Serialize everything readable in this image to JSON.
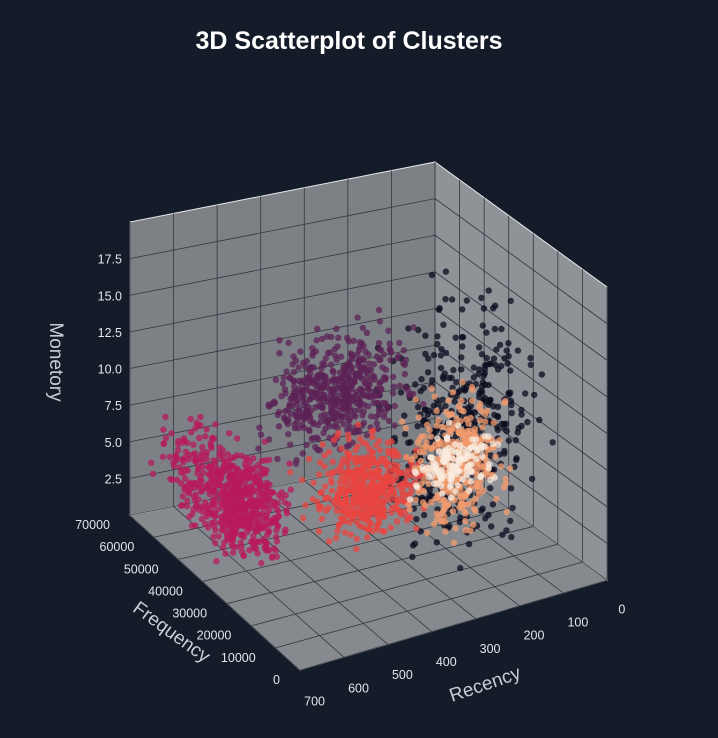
{
  "chart_data": {
    "type": "scatter",
    "title": "3D Scatterplot of Clusters",
    "xlabel": "Recency",
    "ylabel": "Frequency",
    "zlabel": "Monetory",
    "x_ticks": [
      "0",
      "100",
      "200",
      "300",
      "400",
      "500",
      "600",
      "700"
    ],
    "y_ticks": [
      "0",
      "10000",
      "20000",
      "30000",
      "40000",
      "50000",
      "60000",
      "70000"
    ],
    "z_ticks": [
      "2.5",
      "5.0",
      "7.5",
      "10.0",
      "12.5",
      "15.0",
      "17.5"
    ],
    "xlim": [
      0,
      700
    ],
    "ylim": [
      0,
      70000
    ],
    "zlim": [
      0,
      20
    ],
    "grid": true,
    "background_color": "#141c29",
    "pane_color": "#868a8f",
    "series": [
      {
        "color": "#0b0b1e",
        "count": 400,
        "x": [
          10,
          420
        ],
        "y": [
          0,
          40000
        ],
        "z": [
          0,
          20
        ],
        "x_c": 200,
        "y_c": 18000,
        "z_c": 9
      },
      {
        "color": "#5c2156",
        "count": 500,
        "x": [
          300,
          700
        ],
        "y": [
          0,
          30000
        ],
        "z": [
          11,
          20
        ],
        "x_c": 520,
        "y_c": 12000,
        "z_c": 15
      },
      {
        "color": "#b8195c",
        "count": 650,
        "x": [
          500,
          700
        ],
        "y": [
          0,
          70000
        ],
        "z": [
          2,
          10
        ],
        "x_c": 620,
        "y_c": 30000,
        "z_c": 5
      },
      {
        "color": "#ea4440",
        "count": 450,
        "x": [
          300,
          560
        ],
        "y": [
          0,
          38000
        ],
        "z": [
          3,
          10
        ],
        "x_c": 430,
        "y_c": 15000,
        "z_c": 7
      },
      {
        "color": "#f39b6d",
        "count": 350,
        "x": [
          150,
          400
        ],
        "y": [
          0,
          30000
        ],
        "z": [
          2,
          13
        ],
        "x_c": 250,
        "y_c": 12000,
        "z_c": 8
      },
      {
        "color": "#faebdd",
        "count": 130,
        "x": [
          200,
          400
        ],
        "y": [
          0,
          18000
        ],
        "z": [
          7,
          12
        ],
        "x_c": 300,
        "y_c": 6000,
        "z_c": 9.5
      }
    ]
  }
}
